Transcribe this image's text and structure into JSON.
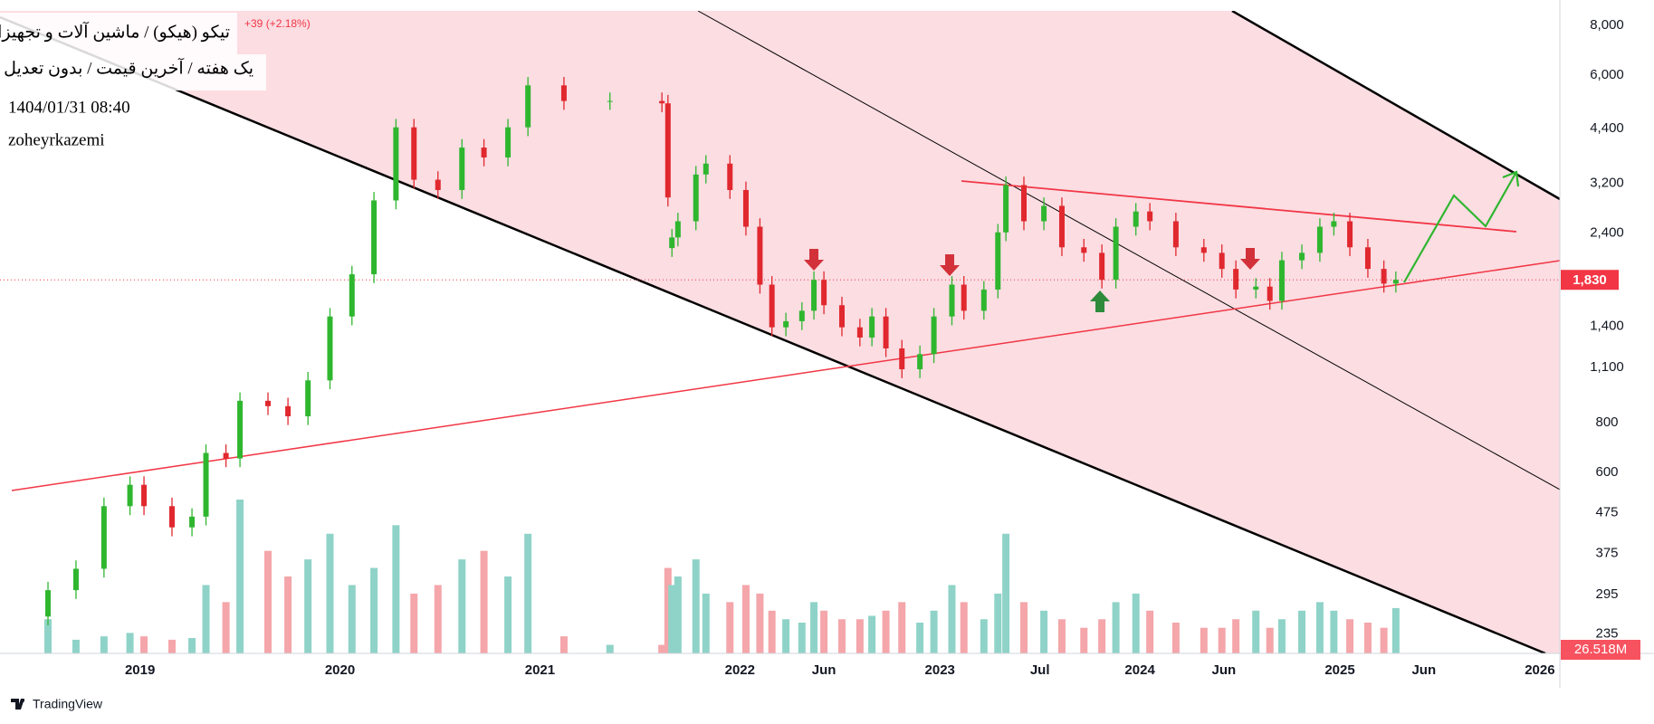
{
  "chart_data": {
    "type": "candlestick",
    "title": "تیکو (هیکو) / ماشین آلات و تجهیزات",
    "subtitle": "یک هفته / آخرین قیمت / بدون تعدیل",
    "annotations": [
      "1404/01/31 08:40",
      "zoheyrkazemi"
    ],
    "change_label": "+39 (+2.18%)",
    "brand": "TradingView",
    "x": [
      2018.54,
      2018.68,
      2018.82,
      2018.95,
      2019.02,
      2019.16,
      2019.26,
      2019.33,
      2019.43,
      2019.5,
      2019.64,
      2019.74,
      2019.84,
      2019.95,
      2020.06,
      2020.17,
      2020.28,
      2020.37,
      2020.49,
      2020.61,
      2020.72,
      2020.84,
      2020.94,
      2021.12,
      2021.35,
      2021.61,
      2021.64,
      2021.66,
      2021.69,
      2021.78,
      2021.83,
      2021.95,
      2022.03,
      2022.1,
      2022.16,
      2022.23,
      2022.31,
      2022.37,
      2022.42,
      2022.51,
      2022.6,
      2022.66,
      2022.73,
      2022.81,
      2022.9,
      2022.97,
      2023.06,
      2023.12,
      2023.22,
      2023.29,
      2023.33,
      2023.42,
      2023.52,
      2023.61,
      2023.72,
      2023.81,
      2023.88,
      2023.98,
      2024.05,
      2024.18,
      2024.32,
      2024.41,
      2024.48,
      2024.58,
      2024.65,
      2024.71,
      2024.81,
      2024.9,
      2024.97,
      2025.05,
      2025.14,
      2025.22,
      2025.28
    ],
    "open": [
      260,
      303,
      343,
      493,
      558,
      493,
      436,
      464,
      671,
      650,
      908,
      880,
      830,
      1022,
      1480,
      1890,
      2900,
      4430,
      3270,
      3080,
      3940,
      3720,
      4430,
      5650,
      5160,
      5160,
      5090,
      2200,
      2340,
      2570,
      3370,
      3590,
      3080,
      2490,
      1780,
      1390,
      1440,
      1530,
      1830,
      1580,
      1390,
      1310,
      1480,
      1230,
      1090,
      1190,
      1480,
      1780,
      1530,
      1730,
      2410,
      3170,
      2570,
      2810,
      2210,
      2140,
      1830,
      2490,
      2720,
      2570,
      2210,
      2140,
      1950,
      1730,
      1760,
      1620,
      2050,
      2140,
      2490,
      2570,
      2210,
      1950,
      1791
    ],
    "high": [
      318,
      360,
      518,
      586,
      586,
      518,
      487,
      705,
      705,
      953,
      953,
      924,
      1073,
      1554,
      1985,
      3045,
      4650,
      4650,
      3434,
      4137,
      4137,
      4650,
      5930,
      5930,
      5420,
      5420,
      5345,
      2457,
      2700,
      3540,
      3770,
      3770,
      3234,
      2615,
      1870,
      1512,
      1607,
      1922,
      1922,
      1659,
      1460,
      1554,
      1554,
      1292,
      1250,
      1554,
      1870,
      1870,
      1817,
      2530,
      3330,
      3330,
      2950,
      2950,
      2320,
      2247,
      2615,
      2856,
      2856,
      2700,
      2320,
      2247,
      2048,
      1848,
      1848,
      2153,
      2247,
      2615,
      2700,
      2700,
      2320,
      2048,
      1922
    ],
    "low": [
      247,
      288,
      326,
      468,
      468,
      414,
      414,
      441,
      618,
      618,
      836,
      789,
      789,
      971,
      1406,
      1796,
      2755,
      3107,
      2926,
      2926,
      3534,
      3534,
      4209,
      4902,
      4902,
      4836,
      2800,
      2090,
      2223,
      2440,
      3200,
      2926,
      2366,
      1690,
      1320,
      1320,
      1368,
      1454,
      1500,
      1320,
      1245,
      1245,
      1170,
      1035,
      1035,
      1130,
      1406,
      1454,
      1454,
      1644,
      2290,
      2440,
      2440,
      2100,
      2033,
      1740,
      1740,
      2366,
      2440,
      2100,
      2033,
      1853,
      1644,
      1644,
      1540,
      1540,
      1948,
      2033,
      2366,
      2100,
      1853,
      1700,
      1700
    ],
    "close": [
      303,
      343,
      493,
      558,
      493,
      436,
      464,
      671,
      650,
      908,
      880,
      830,
      1022,
      1480,
      1890,
      2900,
      4430,
      3270,
      3080,
      3940,
      3720,
      4430,
      5650,
      5160,
      5160,
      5090,
      2950,
      2340,
      2570,
      3370,
      3590,
      3080,
      2490,
      1780,
      1390,
      1440,
      1530,
      1830,
      1580,
      1390,
      1310,
      1480,
      1230,
      1090,
      1190,
      1480,
      1780,
      1530,
      1730,
      2410,
      3170,
      2570,
      2810,
      2210,
      2140,
      1830,
      2490,
      2720,
      2570,
      2210,
      2140,
      1950,
      1730,
      1760,
      1620,
      2050,
      2140,
      2490,
      2570,
      2210,
      1950,
      1791,
      1830
    ],
    "last_label": "1,830",
    "up_color": "#2fb62f",
    "down_color": "#e0282e",
    "volume": {
      "values": [
        20,
        8,
        10,
        12,
        10,
        8,
        9,
        40,
        30,
        90,
        60,
        45,
        55,
        70,
        40,
        50,
        75,
        35,
        40,
        55,
        60,
        45,
        70,
        10,
        5,
        5,
        50,
        40,
        45,
        55,
        35,
        30,
        40,
        35,
        25,
        20,
        18,
        30,
        25,
        20,
        20,
        22,
        25,
        30,
        18,
        25,
        40,
        30,
        20,
        35,
        70,
        30,
        25,
        20,
        15,
        20,
        30,
        35,
        25,
        18,
        15,
        15,
        20,
        25,
        15,
        20,
        25,
        30,
        25,
        20,
        18,
        15,
        26.518
      ],
      "last_label": "26.518M",
      "up_color": "#8fd3c8",
      "down_color": "#f4a6aa"
    },
    "xlim": [
      2018.3,
      2026.1
    ],
    "xticks": [
      2019,
      2020,
      2021,
      2022,
      {
        "value": 2022.42,
        "label": "Jun"
      },
      2023,
      {
        "value": 2023.5,
        "label": "Jul"
      },
      2024,
      {
        "value": 2024.42,
        "label": "Jun"
      },
      2025,
      {
        "value": 2025.42,
        "label": "Jun"
      },
      2026
    ],
    "ylim": [
      210,
      8700
    ],
    "yticks": [
      {
        "value": 8000,
        "label": "8,000"
      },
      {
        "value": 6000,
        "label": "6,000"
      },
      {
        "value": 4400,
        "label": "4,400"
      },
      {
        "value": 3200,
        "label": "3,200"
      },
      {
        "value": 2400,
        "label": "2,400"
      },
      {
        "value": 1400,
        "label": "1,400"
      },
      {
        "value": 1100,
        "label": "1,100"
      },
      800,
      600,
      475,
      375,
      295,
      235
    ],
    "log_scale": true,
    "grid": false
  }
}
